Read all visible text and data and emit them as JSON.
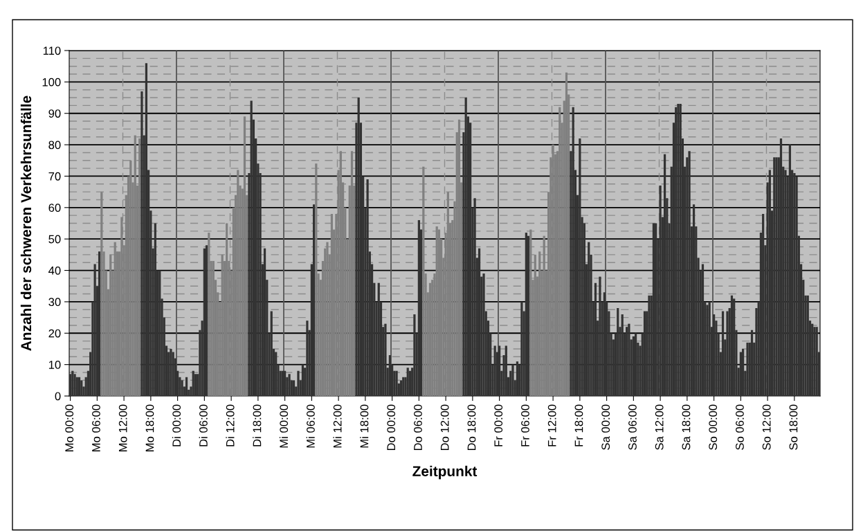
{
  "chart_data": {
    "type": "bar",
    "xlabel": "Zeitpunkt",
    "ylabel": "Anzahl der schweren Verkehrsunfälle",
    "categories": [
      "Mo 00:00",
      null,
      null,
      null,
      null,
      null,
      null,
      null,
      null,
      null,
      null,
      null,
      "Mo 06:00",
      null,
      null,
      null,
      null,
      null,
      null,
      null,
      null,
      null,
      null,
      null,
      "Mo 12:00",
      null,
      null,
      null,
      null,
      null,
      null,
      null,
      null,
      null,
      null,
      null,
      "Mo 18:00",
      null,
      null,
      null,
      null,
      null,
      null,
      null,
      null,
      null,
      null,
      null,
      "Di 00:00",
      null,
      null,
      null,
      null,
      null,
      null,
      null,
      null,
      null,
      null,
      null,
      "Di 06:00",
      null,
      null,
      null,
      null,
      null,
      null,
      null,
      null,
      null,
      null,
      null,
      "Di 12:00",
      null,
      null,
      null,
      null,
      null,
      null,
      null,
      null,
      null,
      null,
      null,
      "Di 18:00",
      null,
      null,
      null,
      null,
      null,
      null,
      null,
      null,
      null,
      null,
      null,
      "Mi 00:00",
      null,
      null,
      null,
      null,
      null,
      null,
      null,
      null,
      null,
      null,
      null,
      "Mi 06:00",
      null,
      null,
      null,
      null,
      null,
      null,
      null,
      null,
      null,
      null,
      null,
      "Mi 12:00",
      null,
      null,
      null,
      null,
      null,
      null,
      null,
      null,
      null,
      null,
      null,
      "Mi 18:00",
      null,
      null,
      null,
      null,
      null,
      null,
      null,
      null,
      null,
      null,
      null,
      "Do 00:00",
      null,
      null,
      null,
      null,
      null,
      null,
      null,
      null,
      null,
      null,
      null,
      "Do 06:00",
      null,
      null,
      null,
      null,
      null,
      null,
      null,
      null,
      null,
      null,
      null,
      "Do 12:00",
      null,
      null,
      null,
      null,
      null,
      null,
      null,
      null,
      null,
      null,
      null,
      "Do 18:00",
      null,
      null,
      null,
      null,
      null,
      null,
      null,
      null,
      null,
      null,
      null,
      "Fr 00:00",
      null,
      null,
      null,
      null,
      null,
      null,
      null,
      null,
      null,
      null,
      null,
      "Fr 06:00",
      null,
      null,
      null,
      null,
      null,
      null,
      null,
      null,
      null,
      null,
      null,
      "Fr 12:00",
      null,
      null,
      null,
      null,
      null,
      null,
      null,
      null,
      null,
      null,
      null,
      "Fr 18:00",
      null,
      null,
      null,
      null,
      null,
      null,
      null,
      null,
      null,
      null,
      null,
      "Sa 00:00",
      null,
      null,
      null,
      null,
      null,
      null,
      null,
      null,
      null,
      null,
      null,
      "Sa 06:00",
      null,
      null,
      null,
      null,
      null,
      null,
      null,
      null,
      null,
      null,
      null,
      "Sa 12:00",
      null,
      null,
      null,
      null,
      null,
      null,
      null,
      null,
      null,
      null,
      null,
      "Sa 18:00",
      null,
      null,
      null,
      null,
      null,
      null,
      null,
      null,
      null,
      null,
      null,
      "So 00:00",
      null,
      null,
      null,
      null,
      null,
      null,
      null,
      null,
      null,
      null,
      null,
      "So 06:00",
      null,
      null,
      null,
      null,
      null,
      null,
      null,
      null,
      null,
      null,
      null,
      "So 12:00",
      null,
      null,
      null,
      null,
      null,
      null,
      null,
      null,
      null,
      null,
      null,
      "So 18:00",
      null,
      null,
      null,
      null,
      null,
      null,
      null,
      null,
      null,
      null,
      null
    ],
    "values": [
      7,
      8,
      7,
      6,
      6,
      5,
      3,
      6,
      8,
      14,
      30,
      42,
      35,
      46,
      65,
      46,
      40,
      34,
      45,
      40,
      49,
      46,
      46,
      57,
      48,
      64,
      70,
      75,
      68,
      83,
      67,
      82,
      97,
      83,
      106,
      72,
      59,
      47,
      55,
      40,
      40,
      31,
      25,
      16,
      14,
      15,
      14,
      12,
      8,
      6,
      5,
      3,
      6,
      2,
      3,
      8,
      7,
      7,
      21,
      24,
      47,
      48,
      52,
      43,
      43,
      37,
      33,
      30,
      45,
      43,
      55,
      43,
      40,
      60,
      64,
      72,
      67,
      66,
      89,
      64,
      71,
      94,
      88,
      82,
      74,
      71,
      42,
      47,
      37,
      20,
      27,
      15,
      14,
      10,
      8,
      8,
      8,
      6,
      7,
      5,
      5,
      3,
      8,
      5,
      10,
      9,
      24,
      21,
      42,
      61,
      74,
      39,
      37,
      43,
      47,
      49,
      45,
      58,
      53,
      58,
      72,
      78,
      68,
      60,
      50,
      67,
      78,
      67,
      87,
      95,
      87,
      70,
      60,
      69,
      46,
      42,
      36,
      30,
      36,
      30,
      22,
      23,
      9,
      13,
      10,
      8,
      8,
      4,
      5,
      6,
      6,
      9,
      8,
      9,
      26,
      20,
      56,
      53,
      73,
      39,
      33,
      36,
      37,
      39,
      54,
      53,
      50,
      44,
      52,
      65,
      55,
      56,
      62,
      84,
      88,
      68,
      84,
      95,
      89,
      87,
      60,
      63,
      44,
      47,
      38,
      39,
      27,
      24,
      20,
      10,
      16,
      14,
      16,
      8,
      13,
      16,
      6,
      8,
      10,
      5,
      11,
      10,
      30,
      27,
      52,
      51,
      53,
      37,
      45,
      38,
      46,
      40,
      51,
      40,
      65,
      76,
      80,
      77,
      78,
      92,
      87,
      94,
      103,
      96,
      78,
      92,
      72,
      64,
      82,
      57,
      55,
      42,
      49,
      45,
      30,
      36,
      24,
      38,
      30,
      33,
      30,
      27,
      20,
      18,
      20,
      28,
      22,
      26,
      20,
      22,
      23,
      18,
      19,
      20,
      17,
      16,
      20,
      27,
      27,
      32,
      32,
      55,
      55,
      50,
      67,
      57,
      77,
      63,
      55,
      73,
      87,
      92,
      93,
      93,
      82,
      73,
      76,
      78,
      54,
      61,
      54,
      44,
      40,
      42,
      30,
      29,
      30,
      22,
      26,
      24,
      20,
      14,
      27,
      18,
      27,
      28,
      32,
      31,
      21,
      9,
      14,
      15,
      8,
      17,
      17,
      21,
      17,
      28,
      30,
      52,
      58,
      48,
      68,
      72,
      59,
      76,
      76,
      76,
      82,
      73,
      72,
      70,
      80,
      72,
      71,
      70,
      51,
      42,
      37,
      32,
      32,
      24,
      23,
      22,
      22,
      14
    ],
    "colors": [
      "#333333",
      "#333333",
      "#333333",
      "#333333",
      "#333333",
      "#333333",
      "#333333",
      "#333333",
      "#333333",
      "#333333",
      "#333333",
      "#333333",
      "#333333",
      "#333333",
      "#808080",
      "#808080",
      "#808080",
      "#808080",
      "#808080",
      "#808080",
      "#808080",
      "#808080",
      "#808080",
      "#808080",
      "#808080",
      "#808080",
      "#808080",
      "#808080",
      "#808080",
      "#808080",
      "#808080",
      "#808080",
      "#333333",
      "#333333",
      "#333333",
      "#333333",
      "#333333",
      "#333333",
      "#333333",
      "#333333",
      "#333333",
      "#333333",
      "#333333",
      "#333333",
      "#333333",
      "#333333",
      "#333333",
      "#333333",
      "#333333",
      "#333333",
      "#333333",
      "#333333",
      "#333333",
      "#333333",
      "#333333",
      "#333333",
      "#333333",
      "#333333",
      "#333333",
      "#333333",
      "#333333",
      "#333333",
      "#808080",
      "#808080",
      "#808080",
      "#808080",
      "#808080",
      "#808080",
      "#808080",
      "#808080",
      "#808080",
      "#808080",
      "#808080",
      "#808080",
      "#808080",
      "#808080",
      "#808080",
      "#808080",
      "#808080",
      "#808080",
      "#333333",
      "#333333",
      "#333333",
      "#333333",
      "#333333",
      "#333333",
      "#333333",
      "#333333",
      "#333333",
      "#333333",
      "#333333",
      "#333333",
      "#333333",
      "#333333",
      "#333333",
      "#333333",
      "#333333",
      "#333333",
      "#333333",
      "#333333",
      "#333333",
      "#333333",
      "#333333",
      "#333333",
      "#333333",
      "#333333",
      "#333333",
      "#333333",
      "#333333",
      "#333333",
      "#808080",
      "#808080",
      "#808080",
      "#808080",
      "#808080",
      "#808080",
      "#808080",
      "#808080",
      "#808080",
      "#808080",
      "#808080",
      "#808080",
      "#808080",
      "#808080",
      "#808080",
      "#808080",
      "#808080",
      "#808080",
      "#333333",
      "#333333",
      "#333333",
      "#333333",
      "#333333",
      "#333333",
      "#333333",
      "#333333",
      "#333333",
      "#333333",
      "#333333",
      "#333333",
      "#333333",
      "#333333",
      "#333333",
      "#333333",
      "#333333",
      "#333333",
      "#333333",
      "#333333",
      "#333333",
      "#333333",
      "#333333",
      "#333333",
      "#333333",
      "#333333",
      "#333333",
      "#333333",
      "#333333",
      "#333333",
      "#808080",
      "#808080",
      "#808080",
      "#808080",
      "#808080",
      "#808080",
      "#808080",
      "#808080",
      "#808080",
      "#808080",
      "#808080",
      "#808080",
      "#808080",
      "#808080",
      "#808080",
      "#808080",
      "#808080",
      "#808080",
      "#333333",
      "#333333",
      "#333333",
      "#333333",
      "#333333",
      "#333333",
      "#333333",
      "#333333",
      "#333333",
      "#333333",
      "#333333",
      "#333333",
      "#333333",
      "#333333",
      "#333333",
      "#333333",
      "#333333",
      "#333333",
      "#333333",
      "#333333",
      "#333333",
      "#333333",
      "#333333",
      "#333333",
      "#333333",
      "#333333",
      "#333333",
      "#333333",
      "#333333",
      "#333333",
      "#808080",
      "#808080",
      "#808080",
      "#808080",
      "#808080",
      "#808080",
      "#808080",
      "#808080",
      "#808080",
      "#808080",
      "#808080",
      "#808080",
      "#808080",
      "#808080",
      "#808080",
      "#808080",
      "#808080",
      "#808080",
      "#333333",
      "#333333",
      "#333333",
      "#333333",
      "#333333",
      "#333333",
      "#333333",
      "#333333",
      "#333333",
      "#333333",
      "#333333",
      "#333333",
      "#333333",
      "#333333",
      "#333333",
      "#333333",
      "#333333",
      "#333333",
      "#333333",
      "#333333",
      "#333333",
      "#333333",
      "#333333",
      "#333333",
      "#333333",
      "#333333",
      "#333333",
      "#333333",
      "#333333",
      "#333333",
      "#333333",
      "#333333",
      "#333333",
      "#333333",
      "#333333",
      "#333333",
      "#333333",
      "#333333",
      "#333333",
      "#333333",
      "#333333",
      "#333333",
      "#333333",
      "#333333",
      "#333333",
      "#333333",
      "#333333",
      "#333333",
      "#333333",
      "#333333",
      "#333333",
      "#333333",
      "#333333",
      "#333333",
      "#333333",
      "#333333",
      "#333333",
      "#333333",
      "#333333",
      "#333333",
      "#333333",
      "#333333",
      "#333333",
      "#333333",
      "#333333",
      "#333333",
      "#333333",
      "#333333",
      "#333333",
      "#333333",
      "#333333",
      "#333333",
      "#333333",
      "#333333",
      "#333333",
      "#333333",
      "#333333",
      "#333333",
      "#333333",
      "#333333",
      "#333333",
      "#333333",
      "#333333",
      "#333333",
      "#333333",
      "#333333",
      "#333333",
      "#333333",
      "#333333",
      "#333333",
      "#333333",
      "#333333",
      "#333333",
      "#333333",
      "#333333",
      "#333333",
      "#333333",
      "#333333",
      "#333333",
      "#333333",
      "#333333",
      "#333333",
      "#333333",
      "#333333",
      "#333333",
      "#333333",
      "#333333",
      "#333333",
      "#333333",
      "#333333",
      "#333333",
      "#333333"
    ],
    "ylim": [
      0,
      110
    ],
    "yticks": [
      0,
      10,
      20,
      30,
      40,
      50,
      60,
      70,
      80,
      90,
      100,
      110
    ],
    "grid": true
  }
}
